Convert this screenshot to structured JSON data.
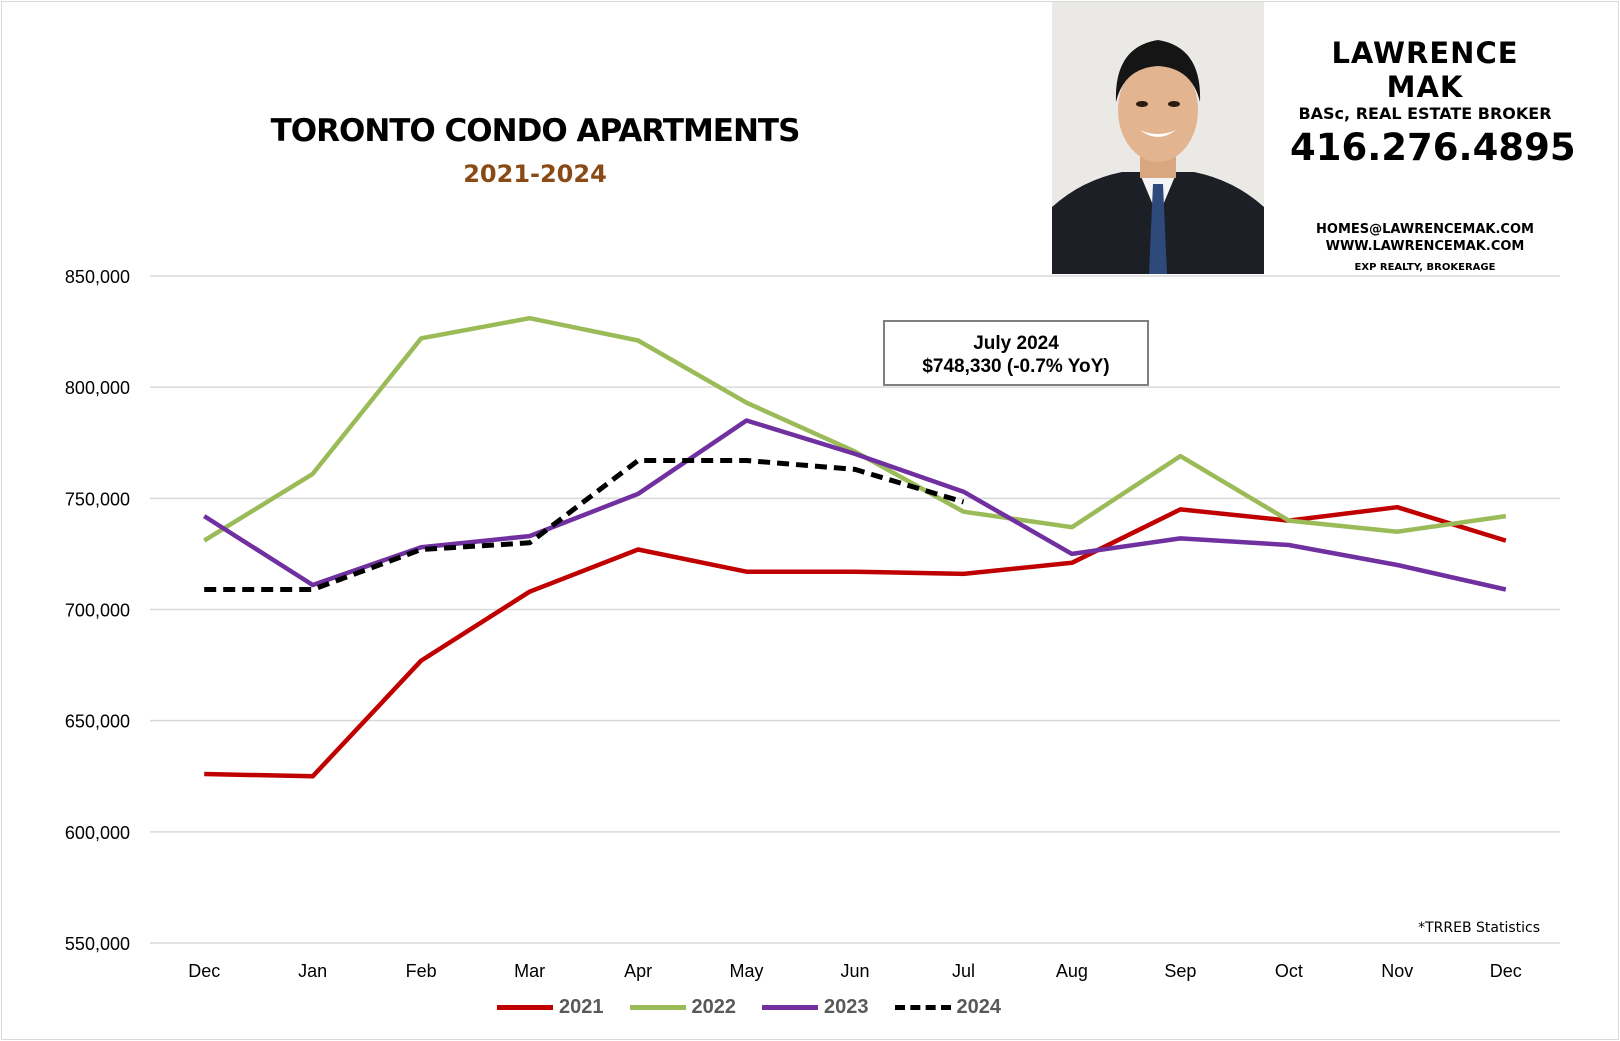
{
  "chart_data": {
    "type": "line",
    "title": "TORONTO CONDO APARTMENTS",
    "subtitle": "2021-2024",
    "xlabel": "",
    "ylabel": "",
    "categories": [
      "Dec",
      "Jan",
      "Feb",
      "Mar",
      "Apr",
      "May",
      "Jun",
      "Jul",
      "Aug",
      "Sep",
      "Oct",
      "Nov",
      "Dec"
    ],
    "ylim": [
      550000,
      850000
    ],
    "yticks": [
      550000,
      600000,
      650000,
      700000,
      750000,
      800000,
      850000
    ],
    "ytick_labels": [
      "550,000",
      "600,000",
      "650,000",
      "700,000",
      "750,000",
      "800,000",
      "850,000"
    ],
    "grid": true,
    "legend_position": "bottom",
    "series": [
      {
        "name": "2021",
        "color": "#c00000",
        "dashed": false,
        "values": [
          626000,
          625000,
          677000,
          708000,
          727000,
          717000,
          717000,
          716000,
          721000,
          745000,
          740000,
          746000,
          731000
        ]
      },
      {
        "name": "2022",
        "color": "#9bbb59",
        "dashed": false,
        "values": [
          731000,
          761000,
          822000,
          831000,
          821000,
          793000,
          771000,
          744000,
          737000,
          769000,
          740000,
          735000,
          742000
        ]
      },
      {
        "name": "2023",
        "color": "#7030a0",
        "dashed": false,
        "values": [
          742000,
          711000,
          728000,
          733000,
          752000,
          785000,
          770000,
          753000,
          725000,
          732000,
          729000,
          720000,
          709000
        ]
      },
      {
        "name": "2024",
        "color": "#000000",
        "dashed": true,
        "values": [
          709000,
          709000,
          727000,
          730000,
          767000,
          767000,
          763000,
          748330,
          null,
          null,
          null,
          null,
          null
        ]
      }
    ],
    "annotation": {
      "line1": "July 2024",
      "line2": "$748,330 (-0.7% YoY)"
    },
    "source_note": "*TRREB Statistics"
  },
  "branding": {
    "name": "LAWRENCE MAK",
    "role": "BASc, REAL ESTATE BROKER",
    "phone": "416.276.4895",
    "email": "HOMES@LAWRENCEMAK.COM",
    "website": "WWW.LAWRENCEMAK.COM",
    "brokerage": "EXP REALTY, BROKERAGE",
    "photo": "agent-headshot"
  }
}
